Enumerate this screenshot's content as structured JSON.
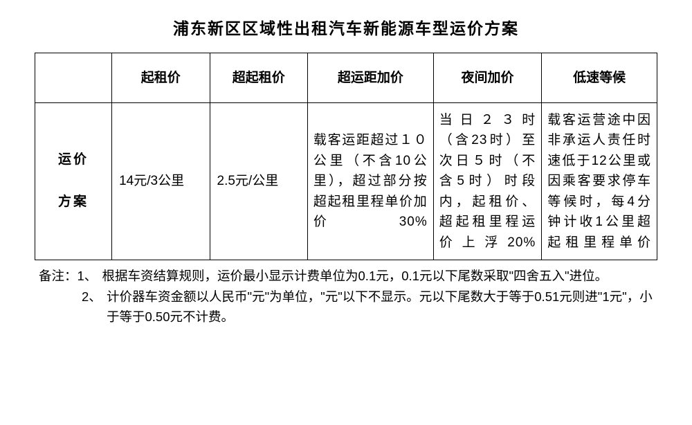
{
  "title": "浦东新区区域性出租汽车新能源车型运价方案",
  "table": {
    "headers": {
      "blank": "",
      "col1": "起租价",
      "col2": "超起租价",
      "col3": "超运距加价",
      "col4": "夜间加价",
      "col5": "低速等候"
    },
    "row_label_line1": "运价",
    "row_label_line2": "方案",
    "cells": {
      "c1": "14元/3公里",
      "c2": "2.5元/公里",
      "c3": "载客运距超过１０公里（不含10公里），超过部分按超起租里程单价加价30%",
      "c4": "当日２３时（含23时）至次日５时（不含5时）时段内，起租价、超起租里程运价上浮20%",
      "c5": "载客运营途中因非承运人责任时速低于12公里或因乘客要求停车等候时，每4分钟计收1公里超起租里程单价"
    }
  },
  "notes": {
    "prefix": "备注：",
    "item1_num": "1、",
    "item1_text": "根据车资结算规则，运价最小显示计费单位为0.1元，0.1元以下尾数采取\"四舍五入\"进位。",
    "item2_num": "2、",
    "item2_text": "计价器车资金额以人民币\"元\"为单位，\"元\"以下不显示。元以下尾数大于等于0.51元则进\"1元\"，小于等于0.50元不计费。"
  },
  "style": {
    "background_color": "#ffffff",
    "text_color": "#000000",
    "border_color": "#000000",
    "title_fontsize": 23,
    "th_fontsize": 19,
    "td_fontsize": 19,
    "notes_fontsize": 18.5
  }
}
